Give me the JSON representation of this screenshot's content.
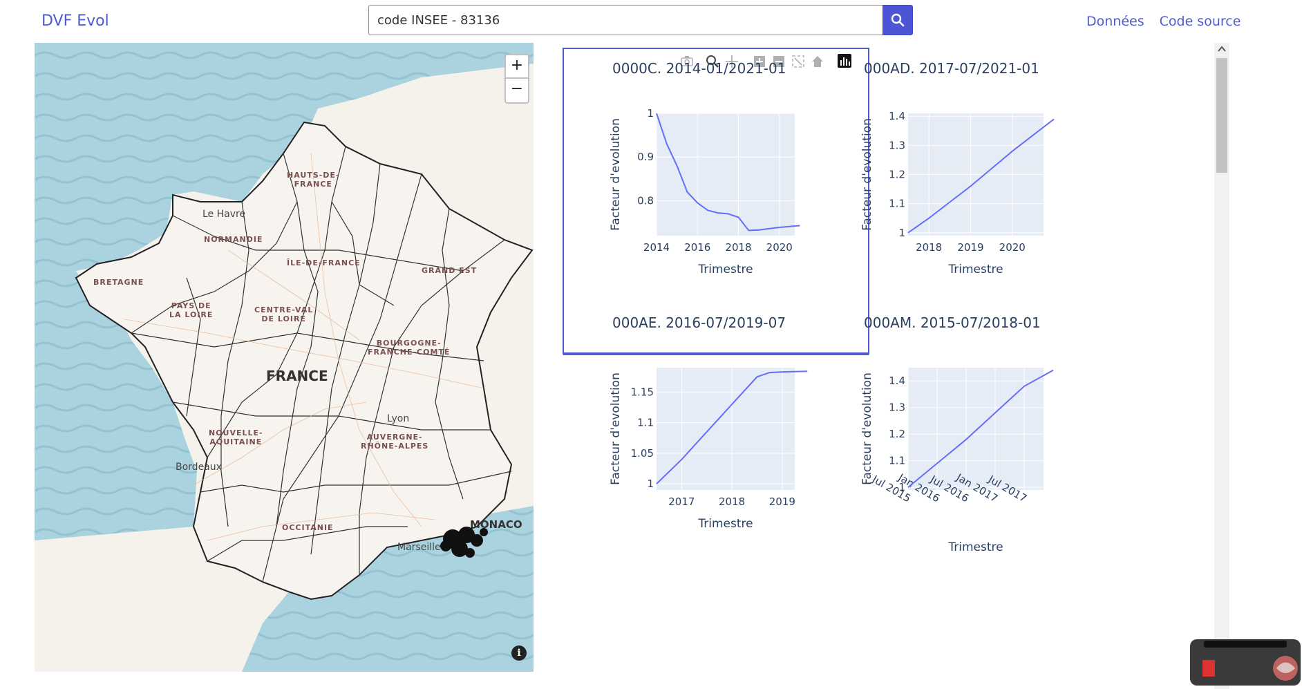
{
  "navbar": {
    "brand": "DVF Evol",
    "search": {
      "value": "code INSEE - 83136"
    },
    "links": [
      "Données",
      "Code source"
    ]
  },
  "map": {
    "country": "FRANCE",
    "regions": [
      {
        "name": "HAUTS-DE-\nFRANCE"
      },
      {
        "name": "NORMANDIE"
      },
      {
        "name": "ÎLE-DE-FRANCE"
      },
      {
        "name": "GRAND EST"
      },
      {
        "name": "BRETAGNE"
      },
      {
        "name": "PAYS DE\nLA LOIRE"
      },
      {
        "name": "CENTRE-VAL\nDE LOIRE"
      },
      {
        "name": "BOURGOGNE-\nFRANCHE-COMTÉ"
      },
      {
        "name": "NOUVELLE-\nAQUITAINE"
      },
      {
        "name": "AUVERGNE-\nRHÔNE-ALPES"
      },
      {
        "name": "OCCITANIE"
      }
    ],
    "cities": [
      "Le Havre",
      "Lyon",
      "Bordeaux",
      "Marseille"
    ],
    "monaco": "MONACO",
    "zoom_in": "+",
    "zoom_out": "−",
    "info": "i"
  },
  "chart_data": [
    {
      "type": "line",
      "title": "0000C. 2014-01/2021-01",
      "xlabel": "Trimestre",
      "ylabel": "Facteur d'evolution",
      "x": [
        "2014-01",
        "2014-07",
        "2015-01",
        "2015-07",
        "2016-01",
        "2016-07",
        "2017-01",
        "2017-07",
        "2018-01",
        "2018-07",
        "2019-01",
        "2019-07",
        "2020-01",
        "2020-07",
        "2021-01"
      ],
      "y": [
        1.0,
        0.93,
        0.88,
        0.82,
        0.795,
        0.778,
        0.772,
        0.77,
        0.762,
        0.732,
        0.733,
        0.736,
        0.739,
        0.741,
        0.743
      ],
      "xticks": [
        "2014",
        "2016",
        "2018",
        "2020"
      ],
      "yticks": [
        "0.8",
        "0.9",
        "1"
      ],
      "ylim": [
        0.72,
        1.0
      ]
    },
    {
      "type": "line",
      "title": "000AD. 2017-07/2021-01",
      "xlabel": "Trimestre",
      "ylabel": "Facteur d'evolution",
      "x": [
        "2017-07",
        "2018-01",
        "2018-07",
        "2019-01",
        "2019-07",
        "2020-01",
        "2020-07",
        "2021-01"
      ],
      "y": [
        1.0,
        1.05,
        1.105,
        1.16,
        1.22,
        1.28,
        1.335,
        1.39
      ],
      "xticks": [
        "2018",
        "2019",
        "2020"
      ],
      "yticks": [
        "1",
        "1.1",
        "1.2",
        "1.3",
        "1.4"
      ],
      "ylim": [
        0.99,
        1.41
      ]
    },
    {
      "type": "line",
      "title": "000AE. 2016-07/2019-07",
      "xlabel": "Trimestre",
      "ylabel": "Facteur d'evolution",
      "x": [
        "2016-07",
        "2017-01",
        "2017-07",
        "2018-01",
        "2018-07",
        "2018-10",
        "2019-01",
        "2019-07"
      ],
      "y": [
        1.0,
        1.04,
        1.085,
        1.13,
        1.175,
        1.182,
        1.183,
        1.184
      ],
      "xticks": [
        "2017",
        "2018",
        "2019"
      ],
      "yticks": [
        "1",
        "1.05",
        "1.1",
        "1.15"
      ],
      "ylim": [
        0.99,
        1.19
      ]
    },
    {
      "type": "line",
      "title": "000AM. 2015-07/2018-01",
      "xlabel": "Trimestre",
      "ylabel": "Facteur d'evolution",
      "x": [
        "2015-07",
        "2016-01",
        "2016-07",
        "2017-01",
        "2017-07",
        "2018-01"
      ],
      "y": [
        1.0,
        1.09,
        1.18,
        1.28,
        1.38,
        1.44
      ],
      "xticks": [
        "Jul 2015",
        "Jan 2016",
        "Jul 2016",
        "Jan 2017",
        "Jul 2017"
      ],
      "yticks": [
        "1",
        "1.1",
        "1.2",
        "1.3",
        "1.4"
      ],
      "ylim": [
        0.99,
        1.45
      ]
    }
  ],
  "colors": {
    "accent": "#4f5bd5",
    "line": "#636efa",
    "plot_bg": "#e5ecf6",
    "sea": "#aad3df"
  }
}
